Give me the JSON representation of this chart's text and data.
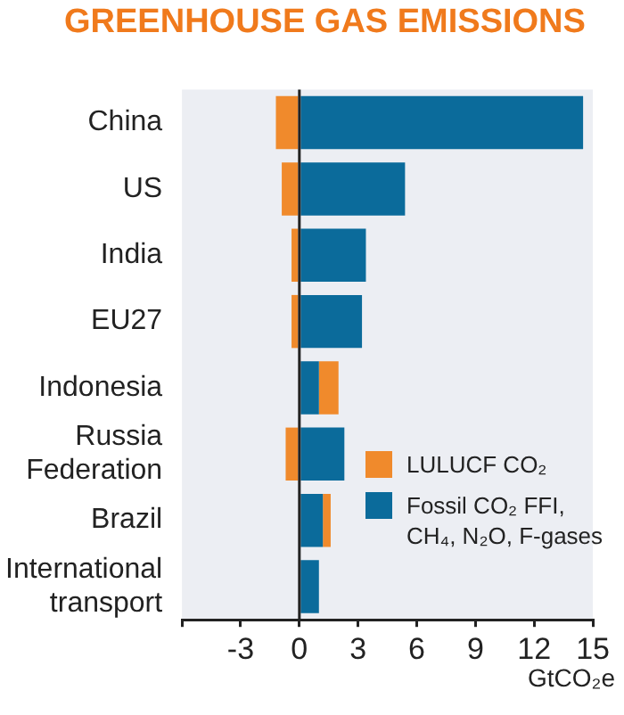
{
  "chart_data": {
    "type": "bar",
    "orientation": "horizontal",
    "stacked": true,
    "title": "GREENHOUSE GAS EMISSIONS",
    "xlabel": "GtCO₂e",
    "categories": [
      "China",
      "US",
      "India",
      "EU27",
      "Indonesia",
      "Russia Federation",
      "Brazil",
      "International transport"
    ],
    "series": [
      {
        "name": "Fossil CO₂ FFI, CH₄, N₂O, F-gases",
        "color": "#0b6b9b",
        "values": [
          14.5,
          5.4,
          3.4,
          3.2,
          1.0,
          2.3,
          1.2,
          1.0
        ]
      },
      {
        "name": "LULUCF CO₂",
        "color": "#f08a2c",
        "values": [
          -1.2,
          -0.9,
          -0.4,
          -0.4,
          1.0,
          -0.7,
          0.4,
          null
        ]
      }
    ],
    "xlim": [
      -6,
      15
    ],
    "xticks": [
      {
        "value": -6,
        "label": null
      },
      -3,
      0,
      3,
      6,
      9,
      12,
      15
    ],
    "ref_lines": [
      {
        "axis": "x",
        "value": 0,
        "color": "#222222"
      }
    ],
    "grid": false,
    "legend": "bottom right"
  }
}
